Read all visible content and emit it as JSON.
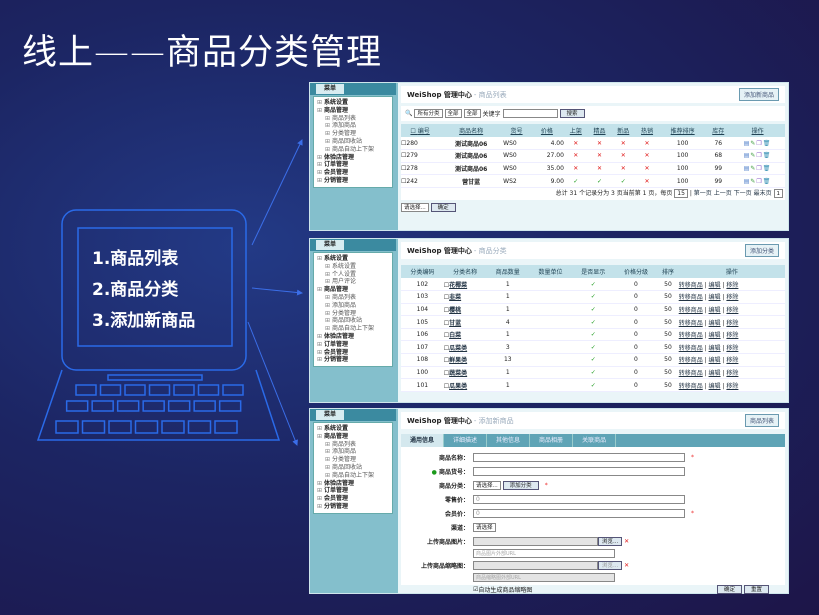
{
  "slide": {
    "title": "线上——商品分类管理",
    "items": [
      "1.商品列表",
      "2.商品分类",
      "3.添加新商品"
    ]
  },
  "colors": {
    "background": "#1c2563",
    "laptop_outline": "#2a6ae8",
    "panel_sidebar": "#84bfcc",
    "header_row": "#c3e2ea"
  },
  "menu_label": "菜单",
  "sidebar1": [
    {
      "t": "系统设置",
      "l": "top"
    },
    {
      "t": "商品管理",
      "l": "top"
    },
    {
      "t": "商品列表",
      "l": "sub"
    },
    {
      "t": "添加商品",
      "l": "sub"
    },
    {
      "t": "分类管理",
      "l": "sub"
    },
    {
      "t": "商品回收站",
      "l": "sub"
    },
    {
      "t": "商品自动上下架",
      "l": "sub"
    },
    {
      "t": "体验店管理",
      "l": "top"
    },
    {
      "t": "订单管理",
      "l": "top"
    },
    {
      "t": "会员管理",
      "l": "top"
    },
    {
      "t": "分销管理",
      "l": "top"
    }
  ],
  "sidebar2": [
    {
      "t": "系统设置",
      "l": "top"
    },
    {
      "t": "系统设置",
      "l": "sub"
    },
    {
      "t": "个人设置",
      "l": "sub"
    },
    {
      "t": "用户评论",
      "l": "sub"
    },
    {
      "t": "商品管理",
      "l": "top"
    },
    {
      "t": "商品列表",
      "l": "sub"
    },
    {
      "t": "添加商品",
      "l": "sub"
    },
    {
      "t": "分类管理",
      "l": "sub"
    },
    {
      "t": "商品回收站",
      "l": "sub"
    },
    {
      "t": "商品自动上下架",
      "l": "sub"
    },
    {
      "t": "体验店管理",
      "l": "top"
    },
    {
      "t": "订单管理",
      "l": "top"
    },
    {
      "t": "会员管理",
      "l": "top"
    },
    {
      "t": "分销管理",
      "l": "top"
    }
  ],
  "brand": "WeiShop 管理中心",
  "list": {
    "crumb": "- 商品列表",
    "add_btn": "添加新商品",
    "search": {
      "category": "所有分类",
      "opt1": "全部",
      "opt2": "全部",
      "keyword_label": "关键字",
      "keyword": "",
      "btn": "搜索"
    },
    "headers": [
      "编号",
      "商品名称",
      "货号",
      "价格",
      "上架",
      "精品",
      "新品",
      "热销",
      "推荐排序",
      "库存",
      "操作"
    ],
    "rows": [
      [
        "280",
        "测试商品06",
        "WS0",
        "4.00",
        "x",
        "x",
        "x",
        "x",
        "100",
        "76"
      ],
      [
        "279",
        "测试商品06",
        "WS0",
        "27.00",
        "x",
        "x",
        "x",
        "x",
        "100",
        "68"
      ],
      [
        "278",
        "测试商品06",
        "WS0",
        "35.00",
        "x",
        "x",
        "x",
        "x",
        "100",
        "99"
      ],
      [
        "242",
        "营甘蓝",
        "WS2",
        "9.00",
        "ok",
        "ok",
        "ok",
        "x",
        "100",
        "99"
      ]
    ],
    "pager": "总计 31 个记录分为 3 页当前第 1 页，每页",
    "per_page": "15",
    "first": "第一页",
    "prev": "上一页",
    "next": "下一页",
    "last": "最末页",
    "page": "1",
    "batch_select": "请选择...",
    "confirm": "确定"
  },
  "cat": {
    "crumb": "- 商品分类",
    "add_btn": "添加分类",
    "headers": [
      "分类编码",
      "分类名称",
      "商品数量",
      "数量单位",
      "是否显示",
      "价格分级",
      "排序",
      "操作"
    ],
    "rows": [
      [
        "102",
        "花椰菜",
        "1"
      ],
      [
        "103",
        "韭菜",
        "1"
      ],
      [
        "104",
        "樱桃",
        "1"
      ],
      [
        "105",
        "甘蓝",
        "4"
      ],
      [
        "106",
        "白菜",
        "1"
      ],
      [
        "107",
        "瓜菜类",
        "3"
      ],
      [
        "108",
        "鲜果类",
        "13"
      ],
      [
        "100",
        "蔬菜类",
        "1"
      ],
      [
        "101",
        "瓜果类",
        "1"
      ]
    ],
    "price_level": "0",
    "sort": "50",
    "ops": [
      "转移商品",
      "编辑",
      "移除"
    ]
  },
  "add": {
    "crumb": "- 添加新商品",
    "list_btn": "商品列表",
    "tabs": [
      "通用信息",
      "详细描述",
      "其他信息",
      "商品相册",
      "关联商品"
    ],
    "name_label": "商品名称：",
    "sn_label": "商品货号：",
    "cat_label": "商品分类：",
    "cat_select": "请选择...",
    "add_cat": "添加分类",
    "retail_label": "零售价：",
    "retail": "0",
    "member_label": "会员价：",
    "member": "0",
    "channel_label": "渠道：",
    "channel_select": "请选择",
    "img_label": "上传商品图片：",
    "browse": "浏览...",
    "img_url_ph": "商品图片外部URL",
    "thumb_label": "上传商品缩略图：",
    "thumb_url_ph": "商品缩略图外部URL",
    "auto_thumb": "自动生成商品缩略图",
    "ok": "确定",
    "reset": "重置"
  }
}
